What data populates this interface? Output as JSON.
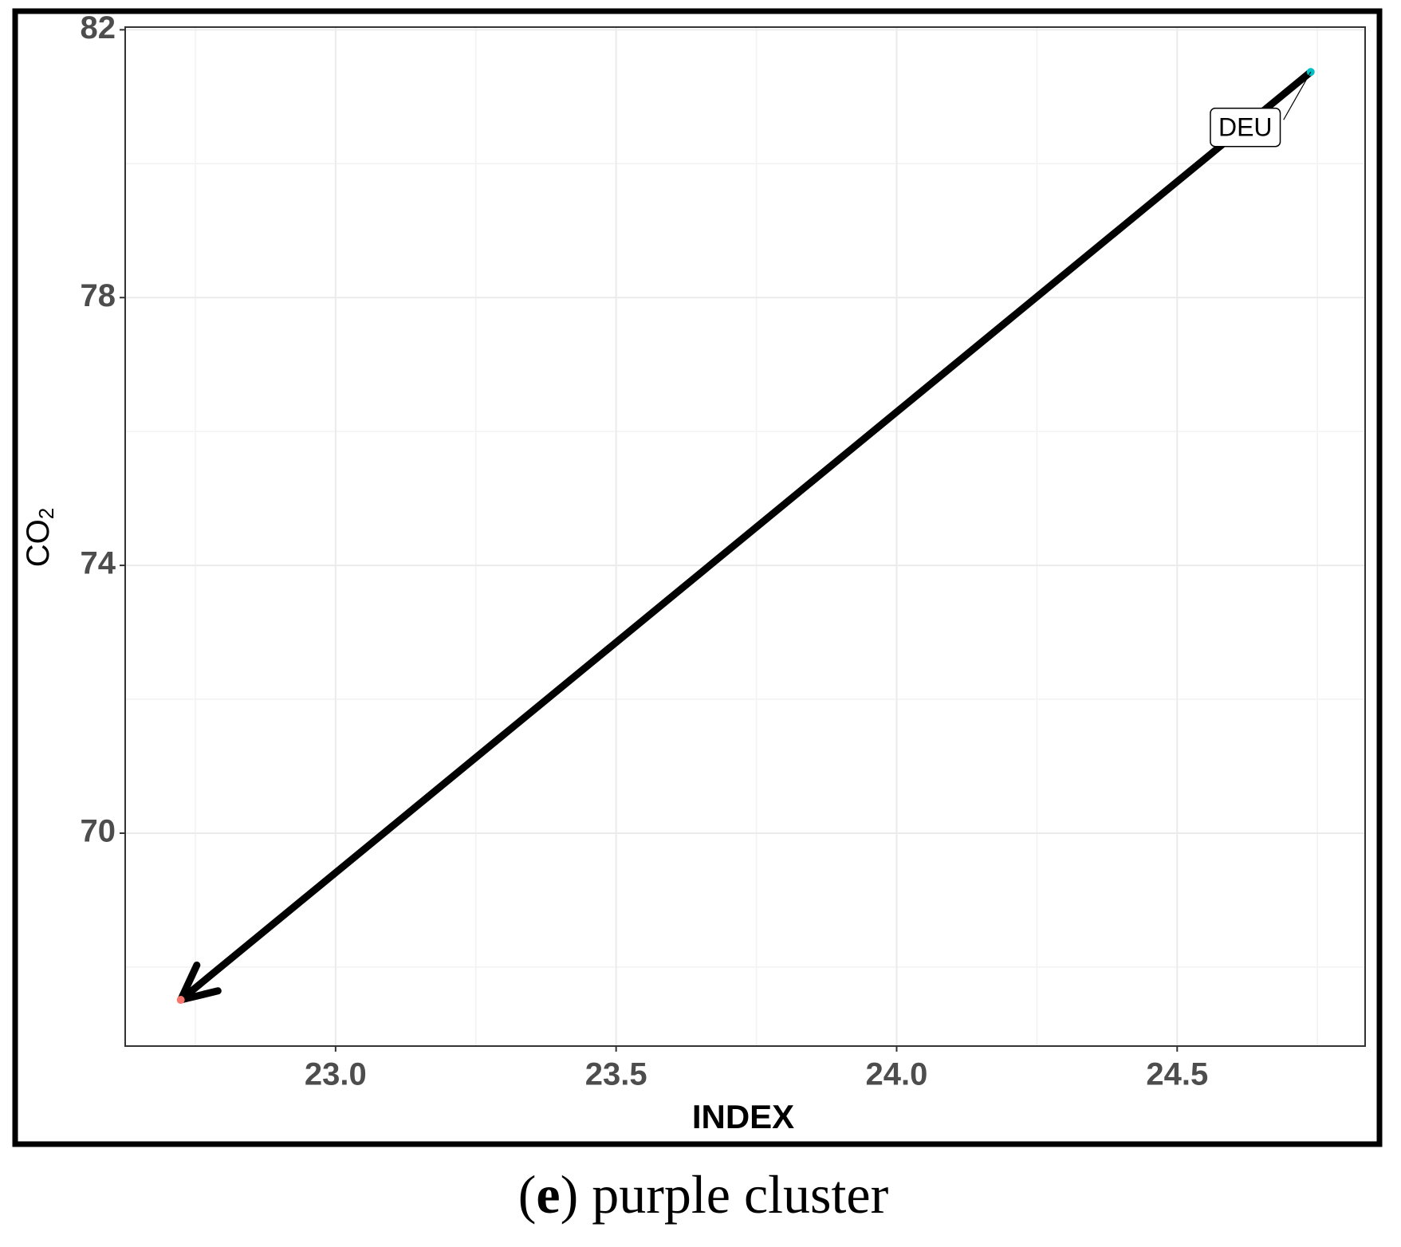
{
  "chart_data": {
    "type": "arrow-scatter",
    "x_label": "INDEX",
    "y_label": "CO",
    "y_label_sub": "2",
    "caption_parts": [
      "(",
      "e",
      ") purple cluster"
    ],
    "series": [
      {
        "x": [
          24.738,
          22.724
        ],
        "values": [
          81.37,
          67.51
        ],
        "color": "#000000",
        "point_colors": [
          "#00bfc4",
          "#f8766d"
        ],
        "labels": [
          "DEU",
          null
        ]
      }
    ],
    "xlim": [
      22.625,
      24.835
    ],
    "xticks": [
      {
        "value": 23,
        "label": "23.0"
      },
      23.5,
      {
        "value": 24,
        "label": "24.0"
      },
      24.5
    ],
    "ylim": [
      66.82,
      82.04
    ],
    "yticks": [
      70,
      74,
      78,
      82
    ],
    "grid": true,
    "minor_grid": true
  }
}
